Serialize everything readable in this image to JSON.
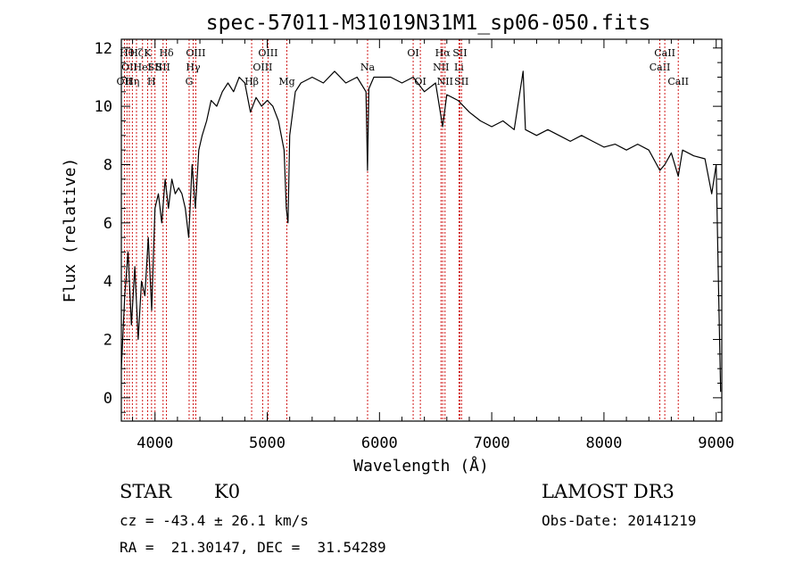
{
  "chart_data": {
    "type": "line",
    "title": "spec-57011-M31019N31M1_sp06-050.fits",
    "xlabel": "Wavelength (Å)",
    "ylabel": "Flux (relative)",
    "xlim": [
      3700,
      9050
    ],
    "ylim": [
      -0.8,
      12.3
    ],
    "xticks": [
      4000,
      5000,
      6000,
      7000,
      8000,
      9000
    ],
    "yticks": [
      0,
      2,
      4,
      6,
      8,
      10,
      12
    ],
    "x": [
      3700,
      3730,
      3760,
      3790,
      3820,
      3850,
      3880,
      3910,
      3940,
      3970,
      4000,
      4030,
      4060,
      4090,
      4120,
      4150,
      4180,
      4210,
      4240,
      4270,
      4300,
      4330,
      4360,
      4390,
      4420,
      4460,
      4500,
      4550,
      4600,
      4650,
      4700,
      4750,
      4800,
      4850,
      4900,
      4950,
      5000,
      5050,
      5100,
      5150,
      5170,
      5185,
      5200,
      5250,
      5300,
      5400,
      5500,
      5600,
      5700,
      5800,
      5880,
      5893,
      5905,
      5950,
      6000,
      6100,
      6200,
      6300,
      6400,
      6500,
      6563,
      6600,
      6700,
      6800,
      6900,
      7000,
      7100,
      7200,
      7280,
      7300,
      7400,
      7500,
      7600,
      7700,
      7800,
      7900,
      8000,
      8100,
      8200,
      8300,
      8400,
      8498,
      8542,
      8600,
      8662,
      8700,
      8800,
      8900,
      8960,
      9000,
      9020,
      9040
    ],
    "values": [
      1.0,
      3.5,
      5.0,
      2.5,
      4.5,
      2.0,
      4.0,
      3.5,
      5.5,
      3.0,
      6.5,
      7.0,
      6.0,
      7.5,
      6.5,
      7.5,
      7.0,
      7.2,
      7.0,
      6.5,
      5.5,
      8.0,
      6.5,
      8.5,
      9.0,
      9.5,
      10.2,
      10.0,
      10.5,
      10.8,
      10.5,
      11.0,
      10.8,
      9.8,
      10.3,
      10.0,
      10.2,
      10.0,
      9.5,
      8.5,
      6.5,
      6.0,
      9.0,
      10.5,
      10.8,
      11.0,
      10.8,
      11.2,
      10.8,
      11.0,
      10.5,
      7.8,
      10.6,
      11.0,
      11.0,
      11.0,
      10.8,
      11.0,
      10.5,
      10.8,
      9.3,
      10.4,
      10.2,
      9.8,
      9.5,
      9.3,
      9.5,
      9.2,
      11.2,
      9.2,
      9.0,
      9.2,
      9.0,
      8.8,
      9.0,
      8.8,
      8.6,
      8.7,
      8.5,
      8.7,
      8.5,
      7.8,
      8.0,
      8.4,
      7.6,
      8.5,
      8.3,
      8.2,
      7.0,
      8.0,
      4.0,
      0.2
    ],
    "spectral_lines": [
      {
        "x": 3727,
        "label": "OII",
        "row": 2
      },
      {
        "x": 3750,
        "label": "Hθ",
        "row": 0
      },
      {
        "x": 3771,
        "label": "OII",
        "row": 1
      },
      {
        "x": 3798,
        "label": "Hη",
        "row": 2
      },
      {
        "x": 3835,
        "label": "Hζ",
        "row": 0
      },
      {
        "x": 3889,
        "label": "HeI",
        "row": 1
      },
      {
        "x": 3934,
        "label": "K",
        "row": 0
      },
      {
        "x": 3969,
        "label": "H",
        "row": 2
      },
      {
        "x": 4000,
        "label": "SII",
        "row": 1
      },
      {
        "x": 4102,
        "label": "Hδ",
        "row": 0
      },
      {
        "x": 4072,
        "label": "SII",
        "row": 1
      },
      {
        "x": 4304,
        "label": "G",
        "row": 2
      },
      {
        "x": 4340,
        "label": "Hγ",
        "row": 1
      },
      {
        "x": 4363,
        "label": "OIII",
        "row": 0
      },
      {
        "x": 4861,
        "label": "Hβ",
        "row": 2
      },
      {
        "x": 4959,
        "label": "OIII",
        "row": 1
      },
      {
        "x": 5007,
        "label": "OIII",
        "row": 0
      },
      {
        "x": 5175,
        "label": "Mg",
        "row": 2
      },
      {
        "x": 5894,
        "label": "Na",
        "row": 1
      },
      {
        "x": 6300,
        "label": "OI",
        "row": 0
      },
      {
        "x": 6364,
        "label": "OI",
        "row": 2
      },
      {
        "x": 6548,
        "label": "NII",
        "row": 1
      },
      {
        "x": 6563,
        "label": "Hα",
        "row": 0
      },
      {
        "x": 6584,
        "label": "NII",
        "row": 2
      },
      {
        "x": 6708,
        "label": "Li",
        "row": 1
      },
      {
        "x": 6717,
        "label": "SII",
        "row": 0
      },
      {
        "x": 6731,
        "label": "SII",
        "row": 2
      },
      {
        "x": 8498,
        "label": "CaII",
        "row": 1
      },
      {
        "x": 8542,
        "label": "CaII",
        "row": 0
      },
      {
        "x": 8662,
        "label": "CaII",
        "row": 2
      }
    ]
  },
  "info": {
    "object_class": "STAR",
    "subclass": "K0",
    "survey": "LAMOST DR3",
    "cz": "cz = -43.4 ± 26.1 km/s",
    "obs_date": "Obs-Date: 20141219",
    "coords": "RA =  21.30147, DEC =  31.54289"
  }
}
